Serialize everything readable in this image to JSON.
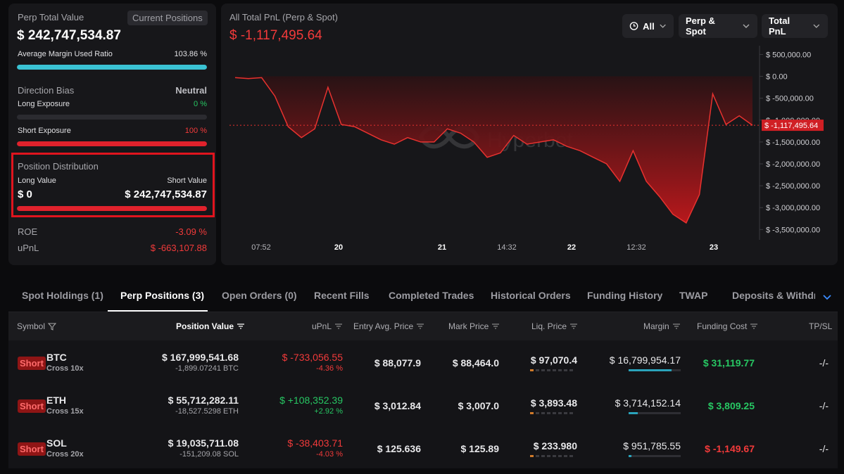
{
  "summary": {
    "perp_total_value_label": "Perp Total Value",
    "current_positions_label": "Current Positions",
    "perp_total_value": "$ 242,747,534.87",
    "margin_ratio_label": "Average Margin Used Ratio",
    "margin_ratio_value": "103.86 %",
    "margin_ratio_fraction": 1.0,
    "direction_bias_label": "Direction Bias",
    "direction_bias_value": "Neutral",
    "long_exposure_label": "Long Exposure",
    "long_exposure_value": "0 %",
    "long_exposure_fraction": 0,
    "short_exposure_label": "Short Exposure",
    "short_exposure_value": "100 %",
    "short_exposure_fraction": 1.0,
    "position_distribution_label": "Position Distribution",
    "long_value_label": "Long Value",
    "short_value_label": "Short Value",
    "long_value": "$ 0",
    "short_value": "$ 242,747,534.87",
    "roe_label": "ROE",
    "roe_value": "-3.09 %",
    "upnl_label": "uPnL",
    "upnl_value": "$ -663,107.88"
  },
  "chart_header": {
    "title": "All Total PnL (Perp & Spot)",
    "value": "$ -1,117,495.64",
    "filter_time": "All",
    "filter_scope": "Perp & Spot",
    "filter_metric": "Total PnL",
    "watermark": "Hyperbot"
  },
  "chart_data": {
    "type": "area",
    "title": "All Total PnL (Perp & Spot)",
    "ylim": [
      -3800000,
      700000
    ],
    "y_ticks": [
      "$ 500,000.00",
      "$ 0.00",
      "$ -500,000.00",
      "$ -1,000,000.00",
      "$ -1,500,000.00",
      "$ -2,000,000.00",
      "$ -2,500,000.00",
      "$ -3,000,000.00",
      "$ -3,500,000.00"
    ],
    "y_tick_values": [
      500000,
      0,
      -500000,
      -1000000,
      -1500000,
      -2000000,
      -2500000,
      -3000000,
      -3500000
    ],
    "x_ticks": [
      "07:52",
      "20",
      "21",
      "14:32",
      "22",
      "12:32",
      "23"
    ],
    "x_tick_bold": [
      false,
      true,
      true,
      false,
      true,
      false,
      true
    ],
    "current_value_label": "$ -1,117,495.64",
    "current_value": -1117495.64,
    "values": [
      -30000,
      -50000,
      -30000,
      -450000,
      -1150000,
      -1400000,
      -1200000,
      -250000,
      -1100000,
      -1150000,
      -1300000,
      -1450000,
      -1550000,
      -1400000,
      -1500000,
      -1500000,
      -1200000,
      -1300000,
      -1500000,
      -1850000,
      -1750000,
      -1350000,
      -1550000,
      -1500000,
      -1450000,
      -1600000,
      -1700000,
      -1850000,
      -2000000,
      -2400000,
      -1700000,
      -2400000,
      -2750000,
      -3150000,
      -3350000,
      -2700000,
      -400000,
      -1100000,
      -900000,
      -1117495.64
    ],
    "line_color": "#e8322f"
  },
  "tabs": [
    {
      "label": "Spot Holdings (1)",
      "active": false
    },
    {
      "label": "Perp Positions (3)",
      "active": true
    },
    {
      "label": "Open Orders (0)",
      "active": false
    },
    {
      "label": "Recent Fills",
      "active": false
    },
    {
      "label": "Completed Trades",
      "active": false
    },
    {
      "label": "Historical Orders",
      "active": false
    },
    {
      "label": "Funding History",
      "active": false
    },
    {
      "label": "TWAP",
      "active": false
    },
    {
      "label": "Deposits & Withdraw",
      "active": false
    }
  ],
  "table": {
    "headers": {
      "symbol": "Symbol",
      "position_value": "Position Value",
      "upnl": "uPnL",
      "entry": "Entry Avg. Price",
      "mark": "Mark Price",
      "liq": "Liq. Price",
      "margin": "Margin",
      "funding": "Funding Cost",
      "tpsl": "TP/SL"
    },
    "rows": [
      {
        "side": "Short",
        "symbol": "BTC",
        "leverage": "Cross 10x",
        "position_value": "$ 167,999,541.68",
        "position_size": "-1,899.07241 BTC",
        "upnl": "$ -733,056.55",
        "upnl_pct": "-4.36 %",
        "upnl_positive": false,
        "entry": "$ 88,077.9",
        "mark": "$ 88,464.0",
        "liq": "$ 97,070.4",
        "margin": "$ 16,799,954.17",
        "margin_fraction": 0.82,
        "funding": "$ 31,119.77",
        "funding_positive": true,
        "tpsl": "-/-"
      },
      {
        "side": "Short",
        "symbol": "ETH",
        "leverage": "Cross 15x",
        "position_value": "$ 55,712,282.11",
        "position_size": "-18,527.5298 ETH",
        "upnl": "$ +108,352.39",
        "upnl_pct": "+2.92 %",
        "upnl_positive": true,
        "entry": "$ 3,012.84",
        "mark": "$ 3,007.0",
        "liq": "$ 3,893.48",
        "margin": "$ 3,714,152.14",
        "margin_fraction": 0.18,
        "funding": "$ 3,809.25",
        "funding_positive": true,
        "tpsl": "-/-"
      },
      {
        "side": "Short",
        "symbol": "SOL",
        "leverage": "Cross 20x",
        "position_value": "$ 19,035,711.08",
        "position_size": "-151,209.08 SOL",
        "upnl": "$ -38,403.71",
        "upnl_pct": "-4.03 %",
        "upnl_positive": false,
        "entry": "$ 125.636",
        "mark": "$ 125.89",
        "liq": "$ 233.980",
        "margin": "$ 951,785.55",
        "margin_fraction": 0.05,
        "funding": "$ -1,149.67",
        "funding_positive": false,
        "tpsl": "-/-"
      }
    ]
  }
}
